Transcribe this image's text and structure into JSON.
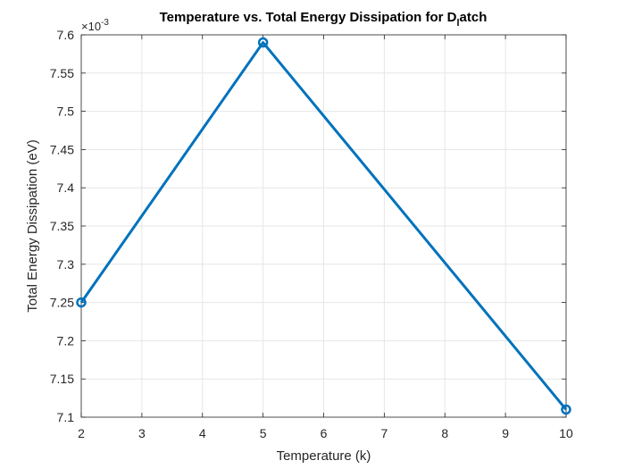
{
  "chart_data": {
    "type": "line",
    "title": "Temperature vs. Total Energy Dissipation for D",
    "title_subscript": "l",
    "title_suffix": "atch",
    "xlabel": "Temperature (k)",
    "ylabel": "Total Energy Dissipation (eV)",
    "exponent_base": "×10",
    "exponent_power": "-3",
    "xlim": [
      2,
      10
    ],
    "ylim": [
      7.1,
      7.6
    ],
    "xticks": [
      "2",
      "3",
      "4",
      "5",
      "6",
      "7",
      "8",
      "9",
      "10"
    ],
    "yticks": [
      "7.1",
      "7.15",
      "7.2",
      "7.25",
      "7.3",
      "7.35",
      "7.4",
      "7.45",
      "7.5",
      "7.55",
      "7.6"
    ],
    "grid": true,
    "series": [
      {
        "x": [
          2,
          5,
          10
        ],
        "y": [
          7.25,
          7.59,
          7.11
        ]
      }
    ],
    "colors": {
      "line": "#0072BD",
      "grid": "#e6e6e6",
      "axis": "#262626"
    }
  }
}
